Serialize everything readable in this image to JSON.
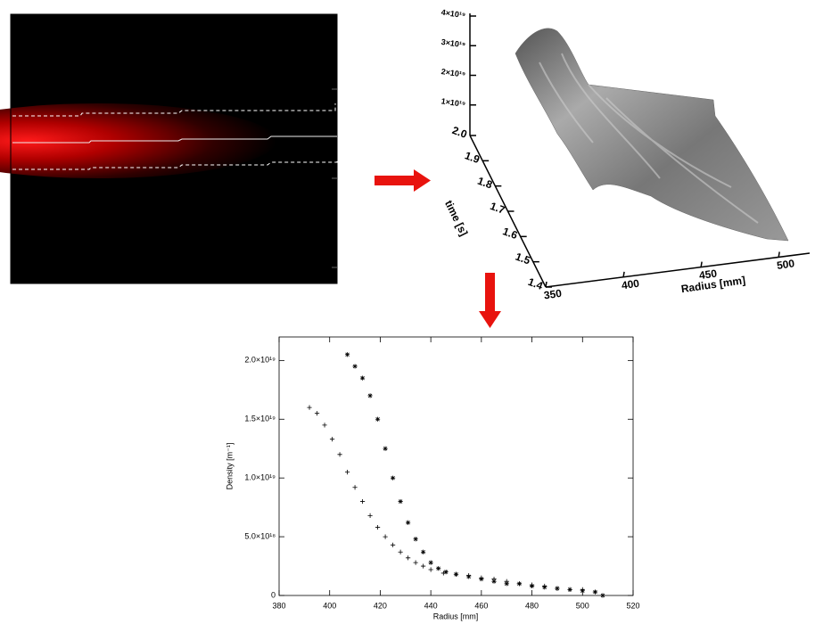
{
  "chart_data": [
    {
      "type": "surface3d",
      "xlabel": "Radius [mm]",
      "ylabel": "time [s]",
      "xlim": [
        350,
        520
      ],
      "xticks": [
        350,
        400,
        450,
        500
      ],
      "ylim": [
        1.4,
        2.0
      ],
      "yticks": [
        1.4,
        1.5,
        1.6,
        1.7,
        1.8,
        1.9,
        {
          "value": 2.0,
          "label": "2.0"
        }
      ],
      "zlim": [
        0,
        4e+19
      ],
      "zticks": [
        {
          "value": 1e+19,
          "label": "1×10¹⁹"
        },
        {
          "value": 2e+19,
          "label": "2×10¹⁹"
        },
        {
          "value": 3e+19,
          "label": "3×10¹⁹"
        },
        {
          "value": 4e+19,
          "label": "4×10¹⁹"
        }
      ]
    },
    {
      "type": "scatter",
      "xlabel": "Radius [mm]",
      "ylabel": "Density [m⁻¹]",
      "xlim": [
        380,
        520
      ],
      "xticks": [
        380,
        400,
        420,
        440,
        460,
        480,
        500,
        520
      ],
      "ylim": [
        0,
        2.2e+19
      ],
      "yticks": [
        0,
        {
          "value": 5e+18,
          "label": "5.0×10¹⁸"
        },
        {
          "value": 1e+19,
          "label": "1.0×10¹⁹"
        },
        {
          "value": 1.5e+19,
          "label": "1.5×10¹⁹"
        },
        {
          "value": 2e+19,
          "label": "2.0×10¹⁹"
        }
      ],
      "color": "#000000",
      "series": [
        {
          "marker": "asterisk",
          "x": [
            407,
            410,
            413,
            416,
            419,
            422,
            425,
            428,
            431,
            434,
            437,
            440,
            443,
            446,
            450,
            455,
            460,
            465,
            470,
            475,
            480,
            485,
            490,
            495,
            500,
            505,
            508
          ],
          "values": [
            2.05e+19,
            1.95e+19,
            1.85e+19,
            1.7e+19,
            1.5e+19,
            1.25e+19,
            1e+19,
            8e+18,
            6.2e+18,
            4.8e+18,
            3.7e+18,
            2.8e+18,
            2.3e+18,
            2e+18,
            1.8e+18,
            1.6e+18,
            1.4e+18,
            1.2e+18,
            1e+18,
            1e+18,
            8e+17,
            7e+17,
            6e+17,
            5e+17,
            4e+17,
            3e+17,
            0
          ]
        },
        {
          "marker": "plus",
          "x": [
            392,
            395,
            398,
            401,
            404,
            407,
            410,
            413,
            416,
            419,
            422,
            425,
            428,
            431,
            434,
            437,
            440,
            445,
            450,
            455,
            460,
            465,
            470,
            475,
            480,
            485,
            490,
            495,
            500,
            505
          ],
          "values": [
            1.6e+19,
            1.55e+19,
            1.45e+19,
            1.33e+19,
            1.2e+19,
            1.05e+19,
            9.2e+18,
            8e+18,
            6.8e+18,
            5.8e+18,
            5e+18,
            4.3e+18,
            3.7e+18,
            3.2e+18,
            2.8e+18,
            2.5e+18,
            2.2e+18,
            1.9e+18,
            1.8e+18,
            1.7e+18,
            1.5e+18,
            1.4e+18,
            1.2e+18,
            1e+18,
            9e+17,
            8e+17,
            6e+17,
            5e+17,
            5e+17,
            3e+17
          ]
        }
      ]
    }
  ]
}
